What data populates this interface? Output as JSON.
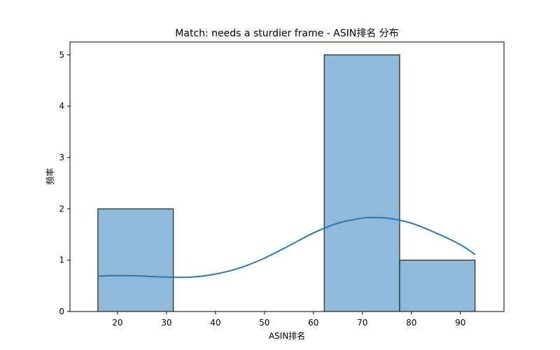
{
  "chart_data": {
    "type": "bar",
    "title": "Match: needs a sturdier frame - ASIN排名 分布",
    "xlabel": "ASIN排名",
    "ylabel": "频率",
    "xlim": [
      10.3,
      98.9
    ],
    "ylim": [
      0,
      5.25
    ],
    "x_ticks": [
      20,
      30,
      40,
      50,
      60,
      70,
      80,
      90
    ],
    "y_ticks": [
      0,
      1,
      2,
      3,
      4,
      5
    ],
    "bins": [
      {
        "x0": 16.0,
        "x1": 31.4,
        "count": 2
      },
      {
        "x0": 31.4,
        "x1": 46.8,
        "count": 0
      },
      {
        "x0": 46.8,
        "x1": 62.2,
        "count": 0
      },
      {
        "x0": 62.2,
        "x1": 77.6,
        "count": 5
      },
      {
        "x0": 77.6,
        "x1": 93.0,
        "count": 1
      }
    ],
    "kde": {
      "x": [
        16,
        20,
        25,
        30,
        35,
        40,
        45,
        50,
        55,
        60,
        65,
        70,
        72,
        75,
        80,
        85,
        90,
        93
      ],
      "y": [
        0.69,
        0.7,
        0.69,
        0.67,
        0.67,
        0.73,
        0.85,
        1.04,
        1.28,
        1.53,
        1.72,
        1.82,
        1.83,
        1.82,
        1.72,
        1.53,
        1.3,
        1.11
      ]
    },
    "grid": false,
    "colors": {
      "bar_fill": "#8fbad9",
      "bar_edge": "#000000",
      "kde_line": "#2a78b4"
    }
  }
}
